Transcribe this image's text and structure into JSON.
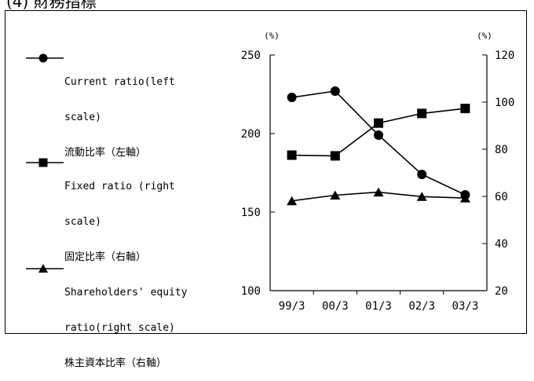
{
  "header": {
    "title": "(4) 財務指標"
  },
  "chart_data": {
    "type": "line",
    "categories": [
      "99/3",
      "00/3",
      "01/3",
      "02/3",
      "03/3"
    ],
    "left_axis": {
      "unit": "(%)",
      "min": 100,
      "max": 250,
      "ticks": [
        100,
        150,
        200,
        250
      ]
    },
    "right_axis": {
      "unit": "(%)",
      "min": 20,
      "max": 120,
      "ticks": [
        20,
        40,
        60,
        80,
        100,
        120
      ]
    },
    "series": [
      {
        "name": "Current ratio(left scale)",
        "name_en_lines": [
          "Current ratio(left",
          "scale)"
        ],
        "name_ja": "流動比率（左軸）",
        "axis": "left",
        "marker": "circle",
        "values": [
          223,
          227,
          199,
          174,
          161
        ]
      },
      {
        "name": "Fixed ratio (right scale)",
        "name_en_lines": [
          "Fixed ratio (right",
          "scale)"
        ],
        "name_ja": "固定比率（右軸）",
        "axis": "right",
        "marker": "square",
        "values": [
          77.5,
          77.2,
          91.1,
          95.2,
          97.3
        ]
      },
      {
        "name": "Shareholders' equity ratio(right scale)",
        "name_en_lines": [
          "Shareholders' equity",
          "ratio(right scale)"
        ],
        "name_ja": "株主資本比率（右軸）",
        "axis": "right",
        "marker": "triangle",
        "values": [
          58.1,
          60.5,
          61.8,
          59.9,
          59.3
        ]
      }
    ],
    "line_color": "#000000",
    "grid": false,
    "legend": "left"
  }
}
